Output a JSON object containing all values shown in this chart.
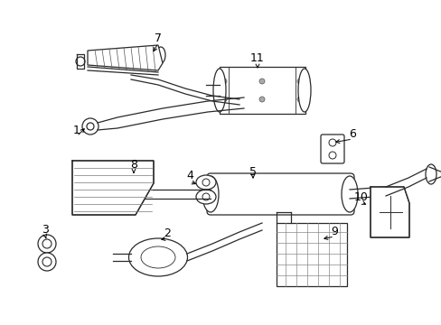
{
  "bg_color": "#ffffff",
  "lc": "#2a2a2a",
  "lw": 0.9,
  "fig_w": 4.89,
  "fig_h": 3.6,
  "dpi": 100
}
